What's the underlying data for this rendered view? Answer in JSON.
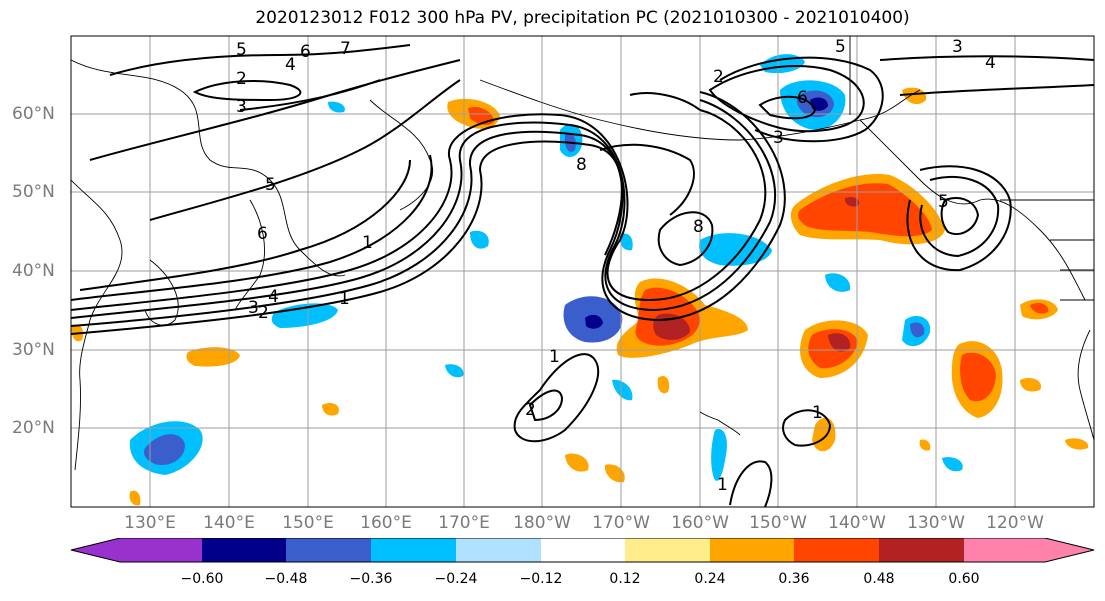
{
  "title": "2020123012 F012 300 hPa PV, precipitation PC (2021010300 - 2021010400)",
  "map": {
    "lat_labels": [
      "60°N",
      "50°N",
      "40°N",
      "30°N",
      "20°N"
    ],
    "lon_labels": [
      "130°E",
      "140°E",
      "150°E",
      "160°E",
      "170°E",
      "180°W",
      "170°W",
      "160°W",
      "150°W",
      "140°W",
      "130°W",
      "120°W"
    ],
    "pv_contour_labels": [
      "5",
      "6",
      "7",
      "4",
      "2",
      "3",
      "2",
      "5",
      "3",
      "4",
      "6",
      "5",
      "6",
      "1",
      "4",
      "3",
      "2",
      "1",
      "1",
      "2",
      "8",
      "3",
      "8",
      "1",
      "1",
      "5"
    ]
  },
  "colorbar": {
    "tick_labels": [
      "−0.60",
      "−0.48",
      "−0.36",
      "−0.24",
      "−0.12",
      "0.12",
      "0.24",
      "0.36",
      "0.48",
      "0.60"
    ],
    "colors": [
      "#9932cc",
      "#00008b",
      "#3a5fcd",
      "#00bfff",
      "#b0e2ff",
      "#ffffff",
      "#ffec8b",
      "#ffa500",
      "#ff4500",
      "#b22222",
      "#ff82ab"
    ]
  }
}
